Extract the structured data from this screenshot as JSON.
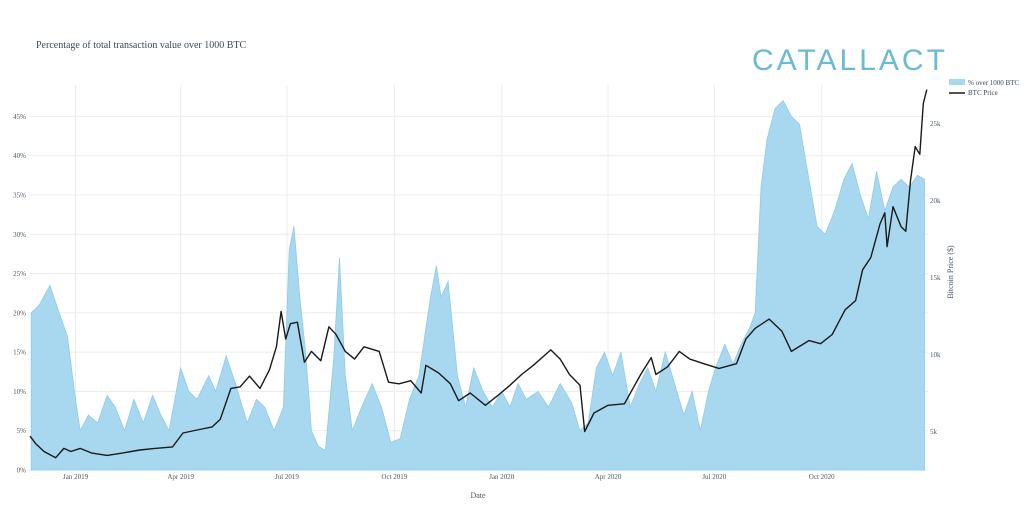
{
  "brand": {
    "logo_text": "CATALLACT",
    "accent": "#6bb9d4"
  },
  "chart_data": {
    "type": "area",
    "title": "Percentage of total transaction value over 1000 BTC",
    "xlabel": "Date",
    "ylabel": "",
    "y2label": "Bitcoin Price ($)",
    "x_ticks": [
      "Jan 2019",
      "Apr 2019",
      "Jul 2019",
      "Oct 2019",
      "Jan 2020",
      "Apr 2020",
      "Jul 2020",
      "Oct 2020"
    ],
    "x_range": [
      "2018-11-23",
      "2020-12-31"
    ],
    "y_ticks": [
      "0%",
      "5%",
      "10%",
      "15%",
      "20%",
      "25%",
      "30%",
      "35%",
      "40%",
      "45%"
    ],
    "ylim": [
      0,
      49
    ],
    "y2_ticks": [
      "5k",
      "10k",
      "15k",
      "20k",
      "25k"
    ],
    "y2lim": [
      2500,
      27500
    ],
    "grid": true,
    "legend_position": "top-right",
    "series": [
      {
        "name": "% over 1000 BTC",
        "type": "area",
        "color": "#a8d8f0",
        "axis": "left",
        "points": [
          [
            "2018-11-24",
            20
          ],
          [
            "2018-12-01",
            21
          ],
          [
            "2018-12-10",
            23.5
          ],
          [
            "2018-12-18",
            20
          ],
          [
            "2018-12-25",
            17
          ],
          [
            "2019-01-01",
            9
          ],
          [
            "2019-01-05",
            5
          ],
          [
            "2019-01-12",
            7
          ],
          [
            "2019-01-20",
            6
          ],
          [
            "2019-01-28",
            9.5
          ],
          [
            "2019-02-04",
            8
          ],
          [
            "2019-02-12",
            5
          ],
          [
            "2019-02-20",
            9
          ],
          [
            "2019-02-28",
            6
          ],
          [
            "2019-03-08",
            9.5
          ],
          [
            "2019-03-15",
            7
          ],
          [
            "2019-03-22",
            5
          ],
          [
            "2019-04-01",
            13
          ],
          [
            "2019-04-08",
            10
          ],
          [
            "2019-04-15",
            9
          ],
          [
            "2019-04-25",
            12
          ],
          [
            "2019-05-01",
            10
          ],
          [
            "2019-05-10",
            14.5
          ],
          [
            "2019-05-18",
            11
          ],
          [
            "2019-05-28",
            6
          ],
          [
            "2019-06-05",
            9
          ],
          [
            "2019-06-12",
            8
          ],
          [
            "2019-06-20",
            5
          ],
          [
            "2019-06-28",
            8
          ],
          [
            "2019-07-03",
            28
          ],
          [
            "2019-07-07",
            31
          ],
          [
            "2019-07-12",
            22
          ],
          [
            "2019-07-17",
            15
          ],
          [
            "2019-07-22",
            5
          ],
          [
            "2019-07-28",
            3
          ],
          [
            "2019-08-03",
            2.5
          ],
          [
            "2019-08-10",
            14
          ],
          [
            "2019-08-15",
            27
          ],
          [
            "2019-08-20",
            12
          ],
          [
            "2019-08-26",
            5
          ],
          [
            "2019-09-03",
            8
          ],
          [
            "2019-09-12",
            11
          ],
          [
            "2019-09-20",
            8
          ],
          [
            "2019-09-28",
            3.5
          ],
          [
            "2019-10-06",
            4
          ],
          [
            "2019-10-14",
            9
          ],
          [
            "2019-10-22",
            12
          ],
          [
            "2019-11-01",
            22
          ],
          [
            "2019-11-06",
            26
          ],
          [
            "2019-11-10",
            22
          ],
          [
            "2019-11-16",
            24
          ],
          [
            "2019-11-24",
            12
          ],
          [
            "2019-12-01",
            8
          ],
          [
            "2019-12-08",
            13
          ],
          [
            "2019-12-16",
            10
          ],
          [
            "2019-12-24",
            8
          ],
          [
            "2020-01-01",
            10
          ],
          [
            "2020-01-08",
            8
          ],
          [
            "2020-01-15",
            11
          ],
          [
            "2020-01-22",
            9
          ],
          [
            "2020-02-01",
            10
          ],
          [
            "2020-02-10",
            8
          ],
          [
            "2020-02-20",
            11
          ],
          [
            "2020-03-01",
            8.5
          ],
          [
            "2020-03-08",
            5
          ],
          [
            "2020-03-15",
            6
          ],
          [
            "2020-03-22",
            13
          ],
          [
            "2020-03-29",
            15
          ],
          [
            "2020-04-05",
            12
          ],
          [
            "2020-04-12",
            15
          ],
          [
            "2020-04-20",
            8
          ],
          [
            "2020-04-28",
            11
          ],
          [
            "2020-05-05",
            13
          ],
          [
            "2020-05-12",
            10
          ],
          [
            "2020-05-20",
            15
          ],
          [
            "2020-05-28",
            11
          ],
          [
            "2020-06-05",
            7
          ],
          [
            "2020-06-12",
            10
          ],
          [
            "2020-06-19",
            5
          ],
          [
            "2020-06-26",
            10
          ],
          [
            "2020-07-02",
            13
          ],
          [
            "2020-07-10",
            16
          ],
          [
            "2020-07-17",
            13.5
          ],
          [
            "2020-07-24",
            16
          ],
          [
            "2020-07-31",
            18
          ],
          [
            "2020-08-05",
            20
          ],
          [
            "2020-08-10",
            36
          ],
          [
            "2020-08-15",
            42
          ],
          [
            "2020-08-22",
            46
          ],
          [
            "2020-08-29",
            47
          ],
          [
            "2020-09-05",
            45
          ],
          [
            "2020-09-12",
            44
          ],
          [
            "2020-09-20",
            37
          ],
          [
            "2020-09-27",
            31
          ],
          [
            "2020-10-04",
            30
          ],
          [
            "2020-10-12",
            33
          ],
          [
            "2020-10-20",
            37
          ],
          [
            "2020-10-27",
            39
          ],
          [
            "2020-11-03",
            35
          ],
          [
            "2020-11-10",
            32
          ],
          [
            "2020-11-17",
            38
          ],
          [
            "2020-11-24",
            33
          ],
          [
            "2020-12-01",
            36
          ],
          [
            "2020-12-08",
            37
          ],
          [
            "2020-12-15",
            36
          ],
          [
            "2020-12-22",
            37.5
          ],
          [
            "2020-12-28",
            37
          ]
        ]
      },
      {
        "name": "BTC Price",
        "type": "line",
        "color": "#1a1a1a",
        "axis": "right",
        "points": [
          [
            "2018-11-23",
            4700
          ],
          [
            "2018-11-28",
            4200
          ],
          [
            "2018-12-05",
            3700
          ],
          [
            "2018-12-15",
            3300
          ],
          [
            "2018-12-22",
            3900
          ],
          [
            "2018-12-28",
            3700
          ],
          [
            "2019-01-05",
            3900
          ],
          [
            "2019-01-15",
            3600
          ],
          [
            "2019-01-28",
            3450
          ],
          [
            "2019-02-10",
            3600
          ],
          [
            "2019-02-25",
            3800
          ],
          [
            "2019-03-10",
            3900
          ],
          [
            "2019-03-25",
            4000
          ],
          [
            "2019-04-03",
            4900
          ],
          [
            "2019-04-15",
            5100
          ],
          [
            "2019-04-28",
            5300
          ],
          [
            "2019-05-05",
            5800
          ],
          [
            "2019-05-14",
            7800
          ],
          [
            "2019-05-22",
            7900
          ],
          [
            "2019-05-30",
            8600
          ],
          [
            "2019-06-08",
            7800
          ],
          [
            "2019-06-16",
            9000
          ],
          [
            "2019-06-22",
            10500
          ],
          [
            "2019-06-26",
            12800
          ],
          [
            "2019-06-30",
            11000
          ],
          [
            "2019-07-04",
            12000
          ],
          [
            "2019-07-10",
            12100
          ],
          [
            "2019-07-16",
            9500
          ],
          [
            "2019-07-22",
            10200
          ],
          [
            "2019-07-30",
            9600
          ],
          [
            "2019-08-06",
            11800
          ],
          [
            "2019-08-12",
            11300
          ],
          [
            "2019-08-20",
            10200
          ],
          [
            "2019-08-28",
            9700
          ],
          [
            "2019-09-05",
            10500
          ],
          [
            "2019-09-18",
            10200
          ],
          [
            "2019-09-26",
            8200
          ],
          [
            "2019-10-05",
            8100
          ],
          [
            "2019-10-15",
            8300
          ],
          [
            "2019-10-24",
            7500
          ],
          [
            "2019-10-28",
            9300
          ],
          [
            "2019-11-08",
            8800
          ],
          [
            "2019-11-18",
            8100
          ],
          [
            "2019-11-25",
            7000
          ],
          [
            "2019-12-05",
            7500
          ],
          [
            "2019-12-18",
            6700
          ],
          [
            "2019-12-28",
            7300
          ],
          [
            "2020-01-08",
            8000
          ],
          [
            "2020-01-18",
            8700
          ],
          [
            "2020-01-28",
            9300
          ],
          [
            "2020-02-12",
            10300
          ],
          [
            "2020-02-20",
            9700
          ],
          [
            "2020-02-28",
            8700
          ],
          [
            "2020-03-08",
            8000
          ],
          [
            "2020-03-12",
            5000
          ],
          [
            "2020-03-20",
            6200
          ],
          [
            "2020-04-01",
            6700
          ],
          [
            "2020-04-15",
            6800
          ],
          [
            "2020-04-29",
            8700
          ],
          [
            "2020-05-08",
            9800
          ],
          [
            "2020-05-12",
            8700
          ],
          [
            "2020-05-22",
            9200
          ],
          [
            "2020-06-01",
            10200
          ],
          [
            "2020-06-10",
            9700
          ],
          [
            "2020-06-22",
            9400
          ],
          [
            "2020-07-05",
            9100
          ],
          [
            "2020-07-20",
            9400
          ],
          [
            "2020-07-28",
            11000
          ],
          [
            "2020-08-05",
            11700
          ],
          [
            "2020-08-17",
            12300
          ],
          [
            "2020-08-28",
            11500
          ],
          [
            "2020-09-05",
            10200
          ],
          [
            "2020-09-20",
            10900
          ],
          [
            "2020-09-30",
            10700
          ],
          [
            "2020-10-10",
            11300
          ],
          [
            "2020-10-21",
            12900
          ],
          [
            "2020-10-30",
            13500
          ],
          [
            "2020-11-05",
            15500
          ],
          [
            "2020-11-12",
            16300
          ],
          [
            "2020-11-20",
            18500
          ],
          [
            "2020-11-24",
            19200
          ],
          [
            "2020-11-26",
            17000
          ],
          [
            "2020-12-01",
            19600
          ],
          [
            "2020-12-08",
            18300
          ],
          [
            "2020-12-12",
            18000
          ],
          [
            "2020-12-16",
            21300
          ],
          [
            "2020-12-20",
            23500
          ],
          [
            "2020-12-24",
            23000
          ],
          [
            "2020-12-27",
            26300
          ],
          [
            "2020-12-30",
            27200
          ]
        ]
      }
    ]
  }
}
